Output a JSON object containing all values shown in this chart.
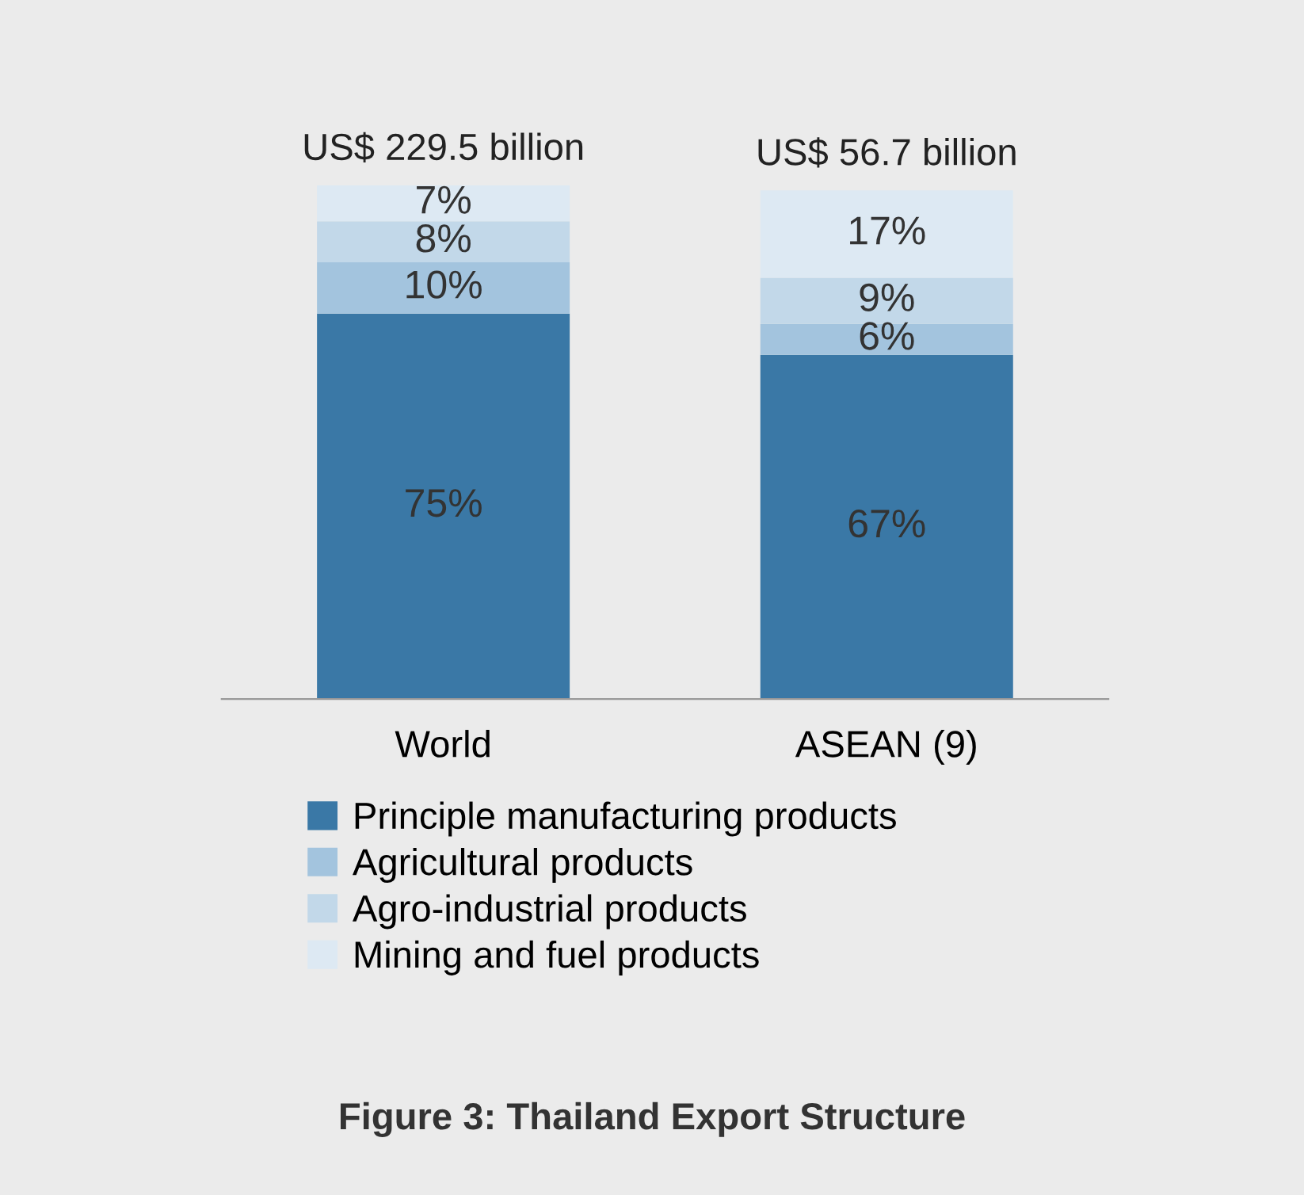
{
  "chart_data": {
    "type": "bar",
    "stacked": true,
    "title": "Figure 3: Thailand Export Structure",
    "categories": [
      "World",
      "ASEAN (9)"
    ],
    "series": [
      {
        "name": "Principle manufacturing products",
        "color": "#3a78a6",
        "values": [
          75,
          67
        ],
        "value_labels": [
          "75%",
          "67%"
        ]
      },
      {
        "name": "Agricultural products",
        "color": "#a3c4de",
        "values": [
          10,
          6
        ],
        "value_labels": [
          "10%",
          "6%"
        ]
      },
      {
        "name": "Agro-industrial products",
        "color": "#c2d8e9",
        "values": [
          8,
          9
        ],
        "value_labels": [
          "8%",
          "9%"
        ]
      },
      {
        "name": "Mining and fuel products",
        "color": "#dde9f3",
        "values": [
          7,
          17
        ],
        "value_labels": [
          "7%",
          "17%"
        ]
      }
    ],
    "totals": [
      "US$ 229.5 billion",
      "US$ 56.7 billion"
    ],
    "legend": "bottom",
    "tick_labels": "x",
    "grid": false
  }
}
